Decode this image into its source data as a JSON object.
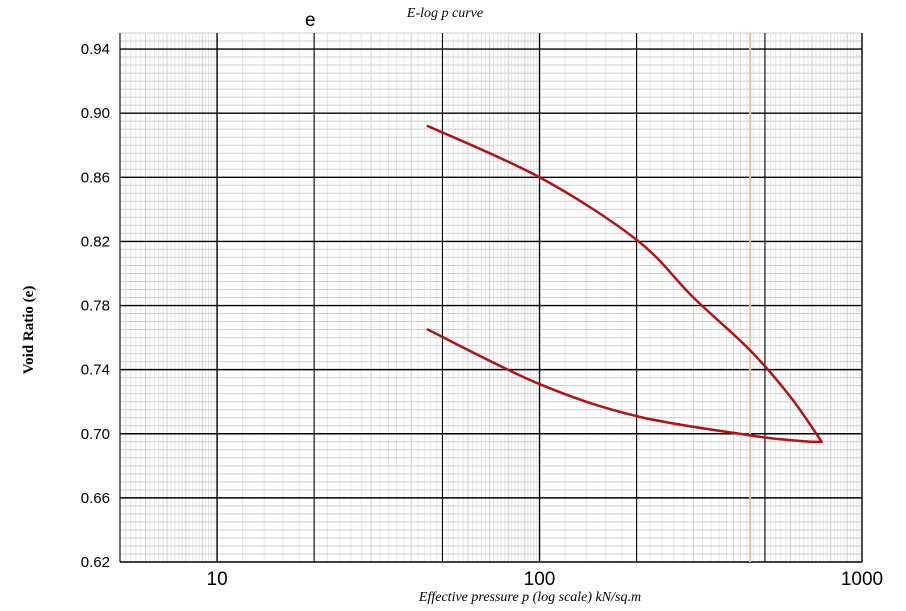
{
  "chart_data": {
    "type": "line",
    "title": "E-log p curve",
    "corner_label": "e",
    "xlabel": "Effective pressure  p (log scale) kN/sq.m",
    "ylabel": "Void Ratio (e)",
    "x_scale": "log",
    "xlim": [
      5,
      1000
    ],
    "ylim": [
      0.62,
      0.95
    ],
    "x_tick_labels": [
      {
        "value": 10,
        "label": "10"
      },
      {
        "value": 100,
        "label": "100"
      },
      {
        "value": 1000,
        "label": "1000"
      }
    ],
    "y_tick_labels": [
      {
        "value": 0.62,
        "label": "0.62"
      },
      {
        "value": 0.66,
        "label": "0.66"
      },
      {
        "value": 0.7,
        "label": "0.70"
      },
      {
        "value": 0.74,
        "label": "0.74"
      },
      {
        "value": 0.78,
        "label": "0.78"
      },
      {
        "value": 0.82,
        "label": "0.82"
      },
      {
        "value": 0.86,
        "label": "0.86"
      },
      {
        "value": 0.9,
        "label": "0.90"
      },
      {
        "value": 0.94,
        "label": "0.94"
      }
    ],
    "grid": true,
    "series": [
      {
        "color": "#b01515",
        "x": [
          45,
          100,
          200,
          300,
          450,
          600,
          750
        ],
        "y": [
          0.892,
          0.86,
          0.821,
          0.785,
          0.752,
          0.723,
          0.695
        ]
      },
      {
        "color": "#b01515",
        "x": [
          45,
          100,
          200,
          450,
          600,
          700,
          750
        ],
        "y": [
          0.765,
          0.731,
          0.711,
          0.699,
          0.696,
          0.695,
          0.695
        ]
      }
    ],
    "highlight_line": {
      "x": 450,
      "color": "#d8c8a0"
    }
  }
}
